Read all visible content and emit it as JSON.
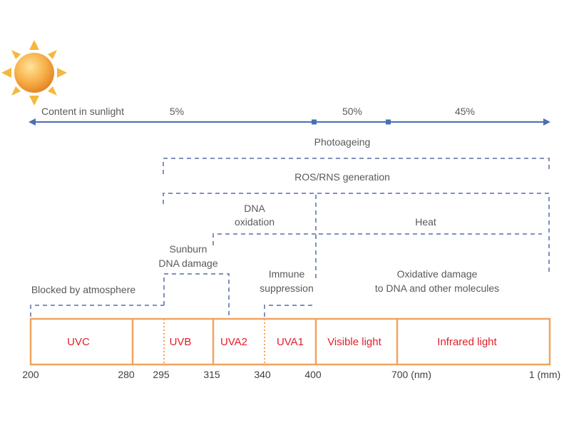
{
  "sunlight_content": {
    "label": "Content in sunlight",
    "shares": [
      "5%",
      "50%",
      "45%"
    ]
  },
  "effects": {
    "photoageing": "Photoageing",
    "ros_rns": "ROS/RNS generation",
    "dna_oxidation_line1": "DNA",
    "dna_oxidation_line2": "oxidation",
    "heat": "Heat",
    "sunburn_line1": "Sunburn",
    "sunburn_line2": "DNA damage",
    "immune_line1": "Immune",
    "immune_line2": "suppression",
    "oxidative_line1": "Oxidative damage",
    "oxidative_line2": "to DNA and other molecules",
    "blocked": "Blocked by atmosphere"
  },
  "bands": [
    {
      "label": "UVC"
    },
    {
      "label": "UVB"
    },
    {
      "label": "UVA2"
    },
    {
      "label": "UVA1"
    },
    {
      "label": "Visible light"
    },
    {
      "label": "Infrared light"
    }
  ],
  "ticks": [
    "200",
    "280",
    "295",
    "315",
    "340",
    "400",
    "700 (nm)",
    "1 (mm)"
  ],
  "colors": {
    "arrow": "#4a6fb5",
    "dashed_bracket": "#7f92bd",
    "band_border": "#f2a35e",
    "band_label": "#e0202a",
    "sun": "#f5a623"
  },
  "icons": {
    "sun": "sun-icon"
  }
}
